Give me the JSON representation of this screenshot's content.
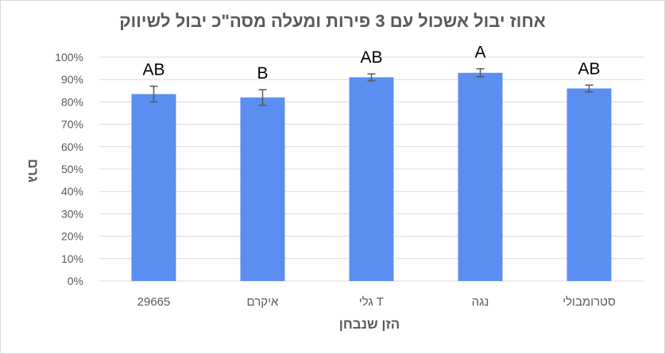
{
  "chart_data": {
    "type": "bar",
    "title": "אחוז יבול אשכול עם 3 פירות ומעלה מסה\"כ יבול לשיווק",
    "xlabel": "הזן שנבחן",
    "ylabel": "גרם",
    "categories": [
      "29665",
      "איקרם",
      "גלי T",
      "נגה",
      "סטרומבולי"
    ],
    "series": [
      {
        "values": [
          0.835,
          0.82,
          0.91,
          0.93,
          0.86
        ],
        "errors": [
          0.035,
          0.035,
          0.015,
          0.018,
          0.015
        ],
        "labels": [
          "AB",
          "B",
          "AB",
          "A",
          "AB"
        ]
      }
    ],
    "ylim": [
      0,
      1
    ],
    "yticks": [
      "0%",
      "10%",
      "20%",
      "30%",
      "40%",
      "50%",
      "60%",
      "70%",
      "80%",
      "90%",
      "100%"
    ],
    "grid": true,
    "legend": "none",
    "colors": {
      "bar": "#5b8ef0",
      "grid": "#d9d9d9",
      "error_bar": "#595959",
      "text": "#595959"
    }
  }
}
